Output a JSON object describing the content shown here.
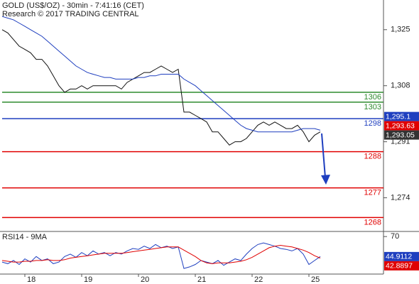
{
  "chart_data": [
    {
      "type": "line",
      "title": "GOLD (US$/OZ) - 30min - 7:41:16 (CET)",
      "subtitle": "Research © 2017 TRADING CENTRAL",
      "x": [
        0,
        1,
        2,
        3,
        4,
        5,
        6,
        7,
        8,
        9,
        10,
        11,
        12,
        13,
        14,
        15,
        16,
        17,
        18,
        19,
        20,
        21,
        22,
        23,
        24,
        25,
        26,
        27,
        28,
        29,
        30,
        31,
        32,
        33,
        34,
        35,
        36,
        37,
        38,
        39,
        40,
        41,
        42,
        43,
        44,
        45,
        46,
        47,
        48,
        49,
        50,
        51,
        52,
        53,
        54,
        55,
        56
      ],
      "xlim": [
        0,
        67
      ],
      "ylim": [
        1264,
        1334
      ],
      "yticks": [
        {
          "value": 1325,
          "label": "1,325"
        },
        {
          "value": 1308,
          "label": "1,308"
        },
        {
          "value": 1291,
          "label": "1,291"
        },
        {
          "value": 1274,
          "label": "1,274"
        }
      ],
      "series": [
        {
          "color": "#111111",
          "values": [
            1325,
            1324,
            1322,
            1320,
            1319,
            1318,
            1316,
            1316,
            1314,
            1311,
            1308,
            1306,
            1307,
            1307,
            1308,
            1307,
            1308,
            1308,
            1308,
            1308,
            1308,
            1307,
            1309,
            1310,
            1311,
            1312,
            1312,
            1313,
            1314,
            1313,
            1312,
            1313,
            1300,
            1300,
            1299,
            1298,
            1297,
            1294,
            1294,
            1292,
            1290,
            1291,
            1291,
            1292,
            1294,
            1296,
            1297,
            1296,
            1297,
            1296,
            1295,
            1295,
            1296,
            1294,
            1291,
            1293,
            1294
          ]
        },
        {
          "color": "#1f3fbf",
          "values": [
            1329,
            1328.5,
            1328,
            1327,
            1326,
            1325,
            1324,
            1323,
            1321.5,
            1320,
            1318.5,
            1317,
            1315.5,
            1314,
            1313,
            1312,
            1311.5,
            1311,
            1310.5,
            1310.5,
            1310,
            1310,
            1310,
            1310,
            1310.5,
            1310.5,
            1311,
            1311,
            1311.5,
            1311.5,
            1311.5,
            1311.5,
            1310,
            1309,
            1308,
            1306.5,
            1305,
            1303.5,
            1302,
            1300.5,
            1299,
            1297.5,
            1296,
            1295,
            1294.5,
            1294,
            1294,
            1294,
            1294,
            1294,
            1294,
            1294,
            1294.5,
            1295,
            1295,
            1295,
            1294.5
          ]
        }
      ],
      "levels": [
        {
          "value": 1306,
          "color": "#2e8b2e"
        },
        {
          "value": 1303,
          "color": "#2e8b2e"
        },
        {
          "value": 1298,
          "color": "#1f3fbf"
        },
        {
          "value": 1288,
          "color": "#e00000"
        },
        {
          "value": 1277,
          "color": "#e00000"
        },
        {
          "value": 1268,
          "color": "#e00000"
        }
      ],
      "value_boxes": [
        {
          "value": 1295.1,
          "label": "1,295.1",
          "color": "#1f3fbf"
        },
        {
          "value": 1293.63,
          "label": "1,293.63",
          "color": "#e00000"
        },
        {
          "value": 1293.05,
          "label": "1,293.05",
          "color": "#333333"
        }
      ]
    },
    {
      "type": "line",
      "title": "RSI14 - 9MA",
      "x": [
        0,
        1,
        2,
        3,
        4,
        5,
        6,
        7,
        8,
        9,
        10,
        11,
        12,
        13,
        14,
        15,
        16,
        17,
        18,
        19,
        20,
        21,
        22,
        23,
        24,
        25,
        26,
        27,
        28,
        29,
        30,
        31,
        32,
        33,
        34,
        35,
        36,
        37,
        38,
        39,
        40,
        41,
        42,
        43,
        44,
        45,
        46,
        47,
        48,
        49,
        50,
        51,
        52,
        53,
        54,
        55,
        56
      ],
      "xlim": [
        0,
        67
      ],
      "xticks": [
        {
          "value": 4,
          "label": "18"
        },
        {
          "value": 14,
          "label": "19"
        },
        {
          "value": 24,
          "label": "20"
        },
        {
          "value": 34,
          "label": "21"
        },
        {
          "value": 44,
          "label": "22"
        },
        {
          "value": 54,
          "label": "25"
        }
      ],
      "ylim": [
        23,
        75.5
      ],
      "yticks": [
        70
      ],
      "series": [
        {
          "color": "#1f3fbf",
          "values": [
            38,
            36,
            40,
            35,
            42,
            38,
            45,
            40,
            42,
            36,
            38,
            45,
            48,
            44,
            50,
            46,
            52,
            48,
            50,
            46,
            50,
            48,
            52,
            55,
            54,
            58,
            55,
            60,
            56,
            58,
            55,
            57,
            30,
            32,
            35,
            40,
            38,
            36,
            40,
            34,
            38,
            42,
            40,
            48,
            55,
            60,
            62,
            60,
            58,
            55,
            54,
            52,
            55,
            48,
            35,
            40,
            45
          ]
        },
        {
          "color": "#e00000",
          "values": [
            40,
            39,
            38,
            38,
            39,
            39,
            40,
            40,
            41,
            40,
            40,
            41,
            43,
            44,
            45,
            46,
            47,
            48,
            49,
            49,
            49,
            49,
            50,
            51,
            52,
            53,
            54,
            55,
            56,
            57,
            57,
            57,
            53,
            49,
            45,
            40,
            37,
            36,
            37,
            37,
            37,
            38,
            39,
            41,
            44,
            48,
            52,
            56,
            58,
            59,
            58,
            57,
            55,
            53,
            50,
            46,
            43
          ]
        }
      ],
      "value_boxes": [
        {
          "value": 44.9112,
          "label": "44.9112",
          "color": "#1f3fbf"
        },
        {
          "value": 42.8897,
          "label": "42.8897",
          "color": "#e00000"
        }
      ]
    }
  ]
}
